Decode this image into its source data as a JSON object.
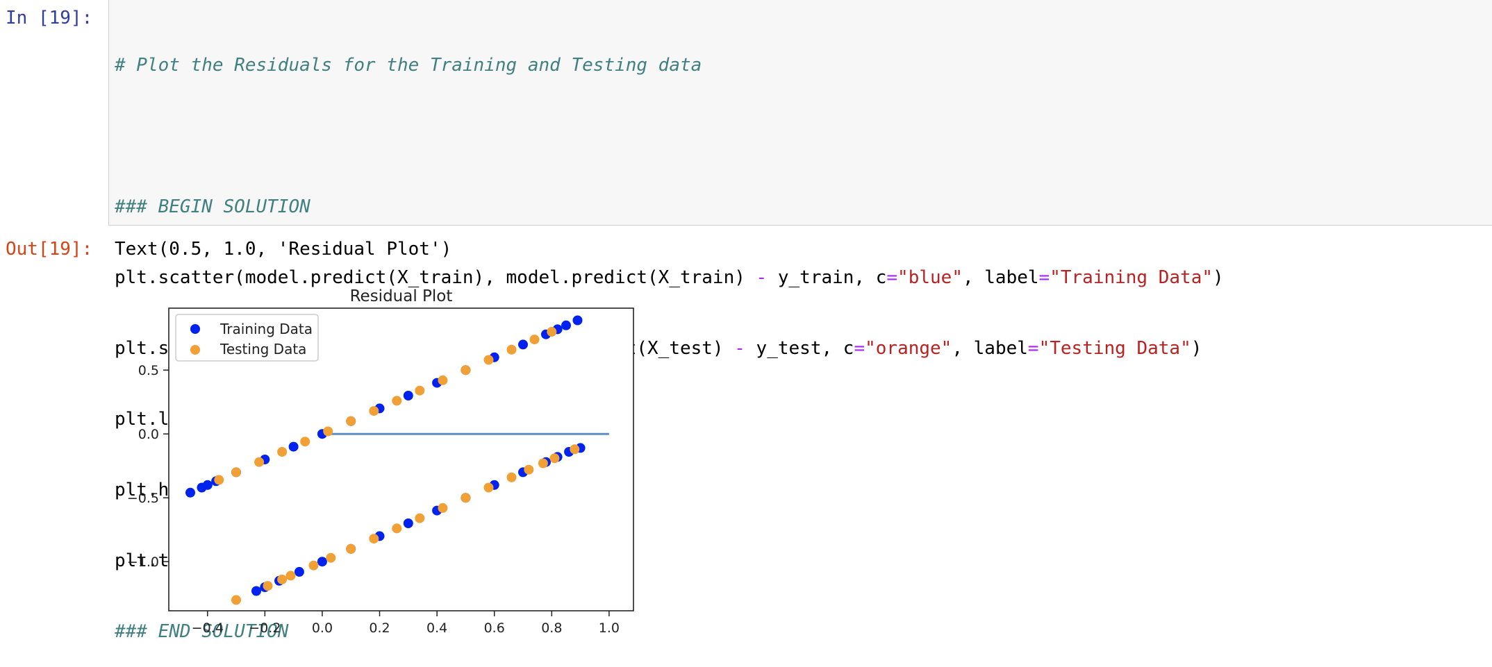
{
  "cell": {
    "in_prompt": "In [19]:",
    "out_prompt": "Out[19]:",
    "comment_line": "# Plot the Residuals for the Training and Testing data",
    "begin": "### BEGIN SOLUTION",
    "end": "### END SOLUTION",
    "output_text": "Text(0.5, 1.0, 'Residual Plot')"
  },
  "chart_data": {
    "type": "scatter",
    "title": "Residual Plot",
    "xlabel": "",
    "ylabel": "",
    "xlim": [
      -0.535,
      1.085
    ],
    "ylim": [
      -1.385,
      0.985
    ],
    "xticks": [
      -0.4,
      -0.2,
      0.0,
      0.2,
      0.4,
      0.6,
      0.8,
      1.0
    ],
    "xtick_labels": [
      "−0.4",
      "−0.2",
      "0.0",
      "0.2",
      "0.4",
      "0.6",
      "0.8",
      "1.0"
    ],
    "yticks": [
      0.5,
      0.0,
      -0.5,
      -1.0
    ],
    "ytick_labels": [
      "0.5",
      "0.0",
      "−0.5",
      "−1.0"
    ],
    "grid": false,
    "legend_position": "upper-left",
    "series": [
      {
        "name": "Training Data",
        "color": "#0022ee",
        "points": [
          [
            -0.46,
            -0.46
          ],
          [
            -0.42,
            -0.42
          ],
          [
            -0.4,
            -0.4
          ],
          [
            -0.37,
            -0.37
          ],
          [
            -0.3,
            -0.3
          ],
          [
            -0.2,
            -0.2
          ],
          [
            -0.1,
            -0.1
          ],
          [
            0.0,
            0.0
          ],
          [
            0.1,
            0.1
          ],
          [
            0.2,
            0.2
          ],
          [
            0.3,
            0.3
          ],
          [
            0.4,
            0.4
          ],
          [
            0.5,
            0.5
          ],
          [
            0.6,
            0.6
          ],
          [
            0.7,
            0.7
          ],
          [
            0.78,
            0.78
          ],
          [
            0.82,
            0.82
          ],
          [
            0.85,
            0.85
          ],
          [
            0.89,
            0.89
          ],
          [
            -0.23,
            -1.23
          ],
          [
            -0.2,
            -1.2
          ],
          [
            -0.15,
            -1.15
          ],
          [
            -0.08,
            -1.08
          ],
          [
            0.0,
            -1.0
          ],
          [
            0.1,
            -0.9
          ],
          [
            0.2,
            -0.8
          ],
          [
            0.3,
            -0.7
          ],
          [
            0.4,
            -0.6
          ],
          [
            0.5,
            -0.5
          ],
          [
            0.6,
            -0.4
          ],
          [
            0.7,
            -0.3
          ],
          [
            0.78,
            -0.22
          ],
          [
            0.82,
            -0.18
          ],
          [
            0.86,
            -0.14
          ],
          [
            0.9,
            -0.11
          ]
        ]
      },
      {
        "name": "Testing Data",
        "color": "#f0a035",
        "points": [
          [
            -0.36,
            -0.36
          ],
          [
            -0.3,
            -0.3
          ],
          [
            -0.22,
            -0.22
          ],
          [
            -0.14,
            -0.14
          ],
          [
            -0.06,
            -0.06
          ],
          [
            0.02,
            0.02
          ],
          [
            0.1,
            0.1
          ],
          [
            0.18,
            0.18
          ],
          [
            0.26,
            0.26
          ],
          [
            0.34,
            0.34
          ],
          [
            0.42,
            0.42
          ],
          [
            0.5,
            0.5
          ],
          [
            0.58,
            0.58
          ],
          [
            0.66,
            0.66
          ],
          [
            0.74,
            0.74
          ],
          [
            0.8,
            0.8
          ],
          [
            -0.3,
            -1.3
          ],
          [
            -0.19,
            -1.19
          ],
          [
            -0.14,
            -1.14
          ],
          [
            -0.11,
            -1.11
          ],
          [
            -0.03,
            -1.03
          ],
          [
            0.03,
            -0.97
          ],
          [
            0.1,
            -0.9
          ],
          [
            0.18,
            -0.82
          ],
          [
            0.26,
            -0.74
          ],
          [
            0.34,
            -0.66
          ],
          [
            0.42,
            -0.58
          ],
          [
            0.5,
            -0.5
          ],
          [
            0.58,
            -0.42
          ],
          [
            0.66,
            -0.34
          ],
          [
            0.72,
            -0.28
          ],
          [
            0.77,
            -0.23
          ],
          [
            0.81,
            -0.19
          ],
          [
            0.88,
            -0.12
          ]
        ]
      }
    ],
    "hlines": [
      {
        "y": 0.0,
        "xmin": 0.0,
        "xmax": 1.0,
        "color": "#5b8fc2"
      }
    ]
  }
}
